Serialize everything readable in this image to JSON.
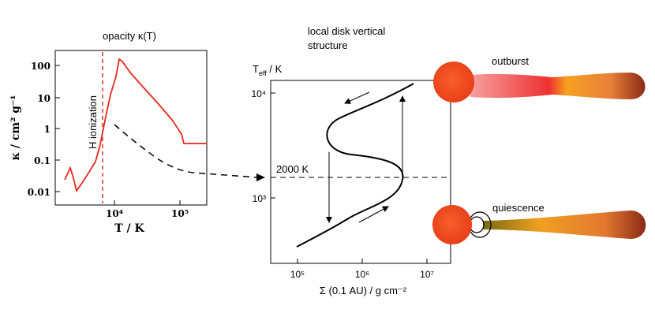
{
  "left_panel": {
    "title": "opacity κ(T)",
    "y_label": "κ  /  cm²  g⁻¹",
    "x_label": "T  /  K",
    "x_ticks": [
      "10⁴",
      "10⁵"
    ],
    "y_ticks": [
      "100",
      "10",
      "1",
      "0.1",
      "0.01"
    ],
    "annotation": "H ionization"
  },
  "right_panel": {
    "title_line1": "local disk vertical",
    "title_line2": "structure",
    "y_label": "T",
    "y_label_sub": "eff",
    "y_label_unit": " / K",
    "x_label": "Σ (0.1 AU) / g cm⁻²",
    "x_ticks": [
      "10⁵",
      "10⁶",
      "10⁷"
    ],
    "y_ticks": [
      "10⁴",
      "10³"
    ],
    "threshold_label": "2000 K"
  },
  "states": {
    "outburst": "outburst",
    "quiescence": "quiescence"
  },
  "colors": {
    "opacity_curve": "#e8281e",
    "star": "#f04a1e",
    "disk_hot": "#f05a50",
    "disk_mid": "#f5a020",
    "disk_cool": "#9a3018"
  }
}
